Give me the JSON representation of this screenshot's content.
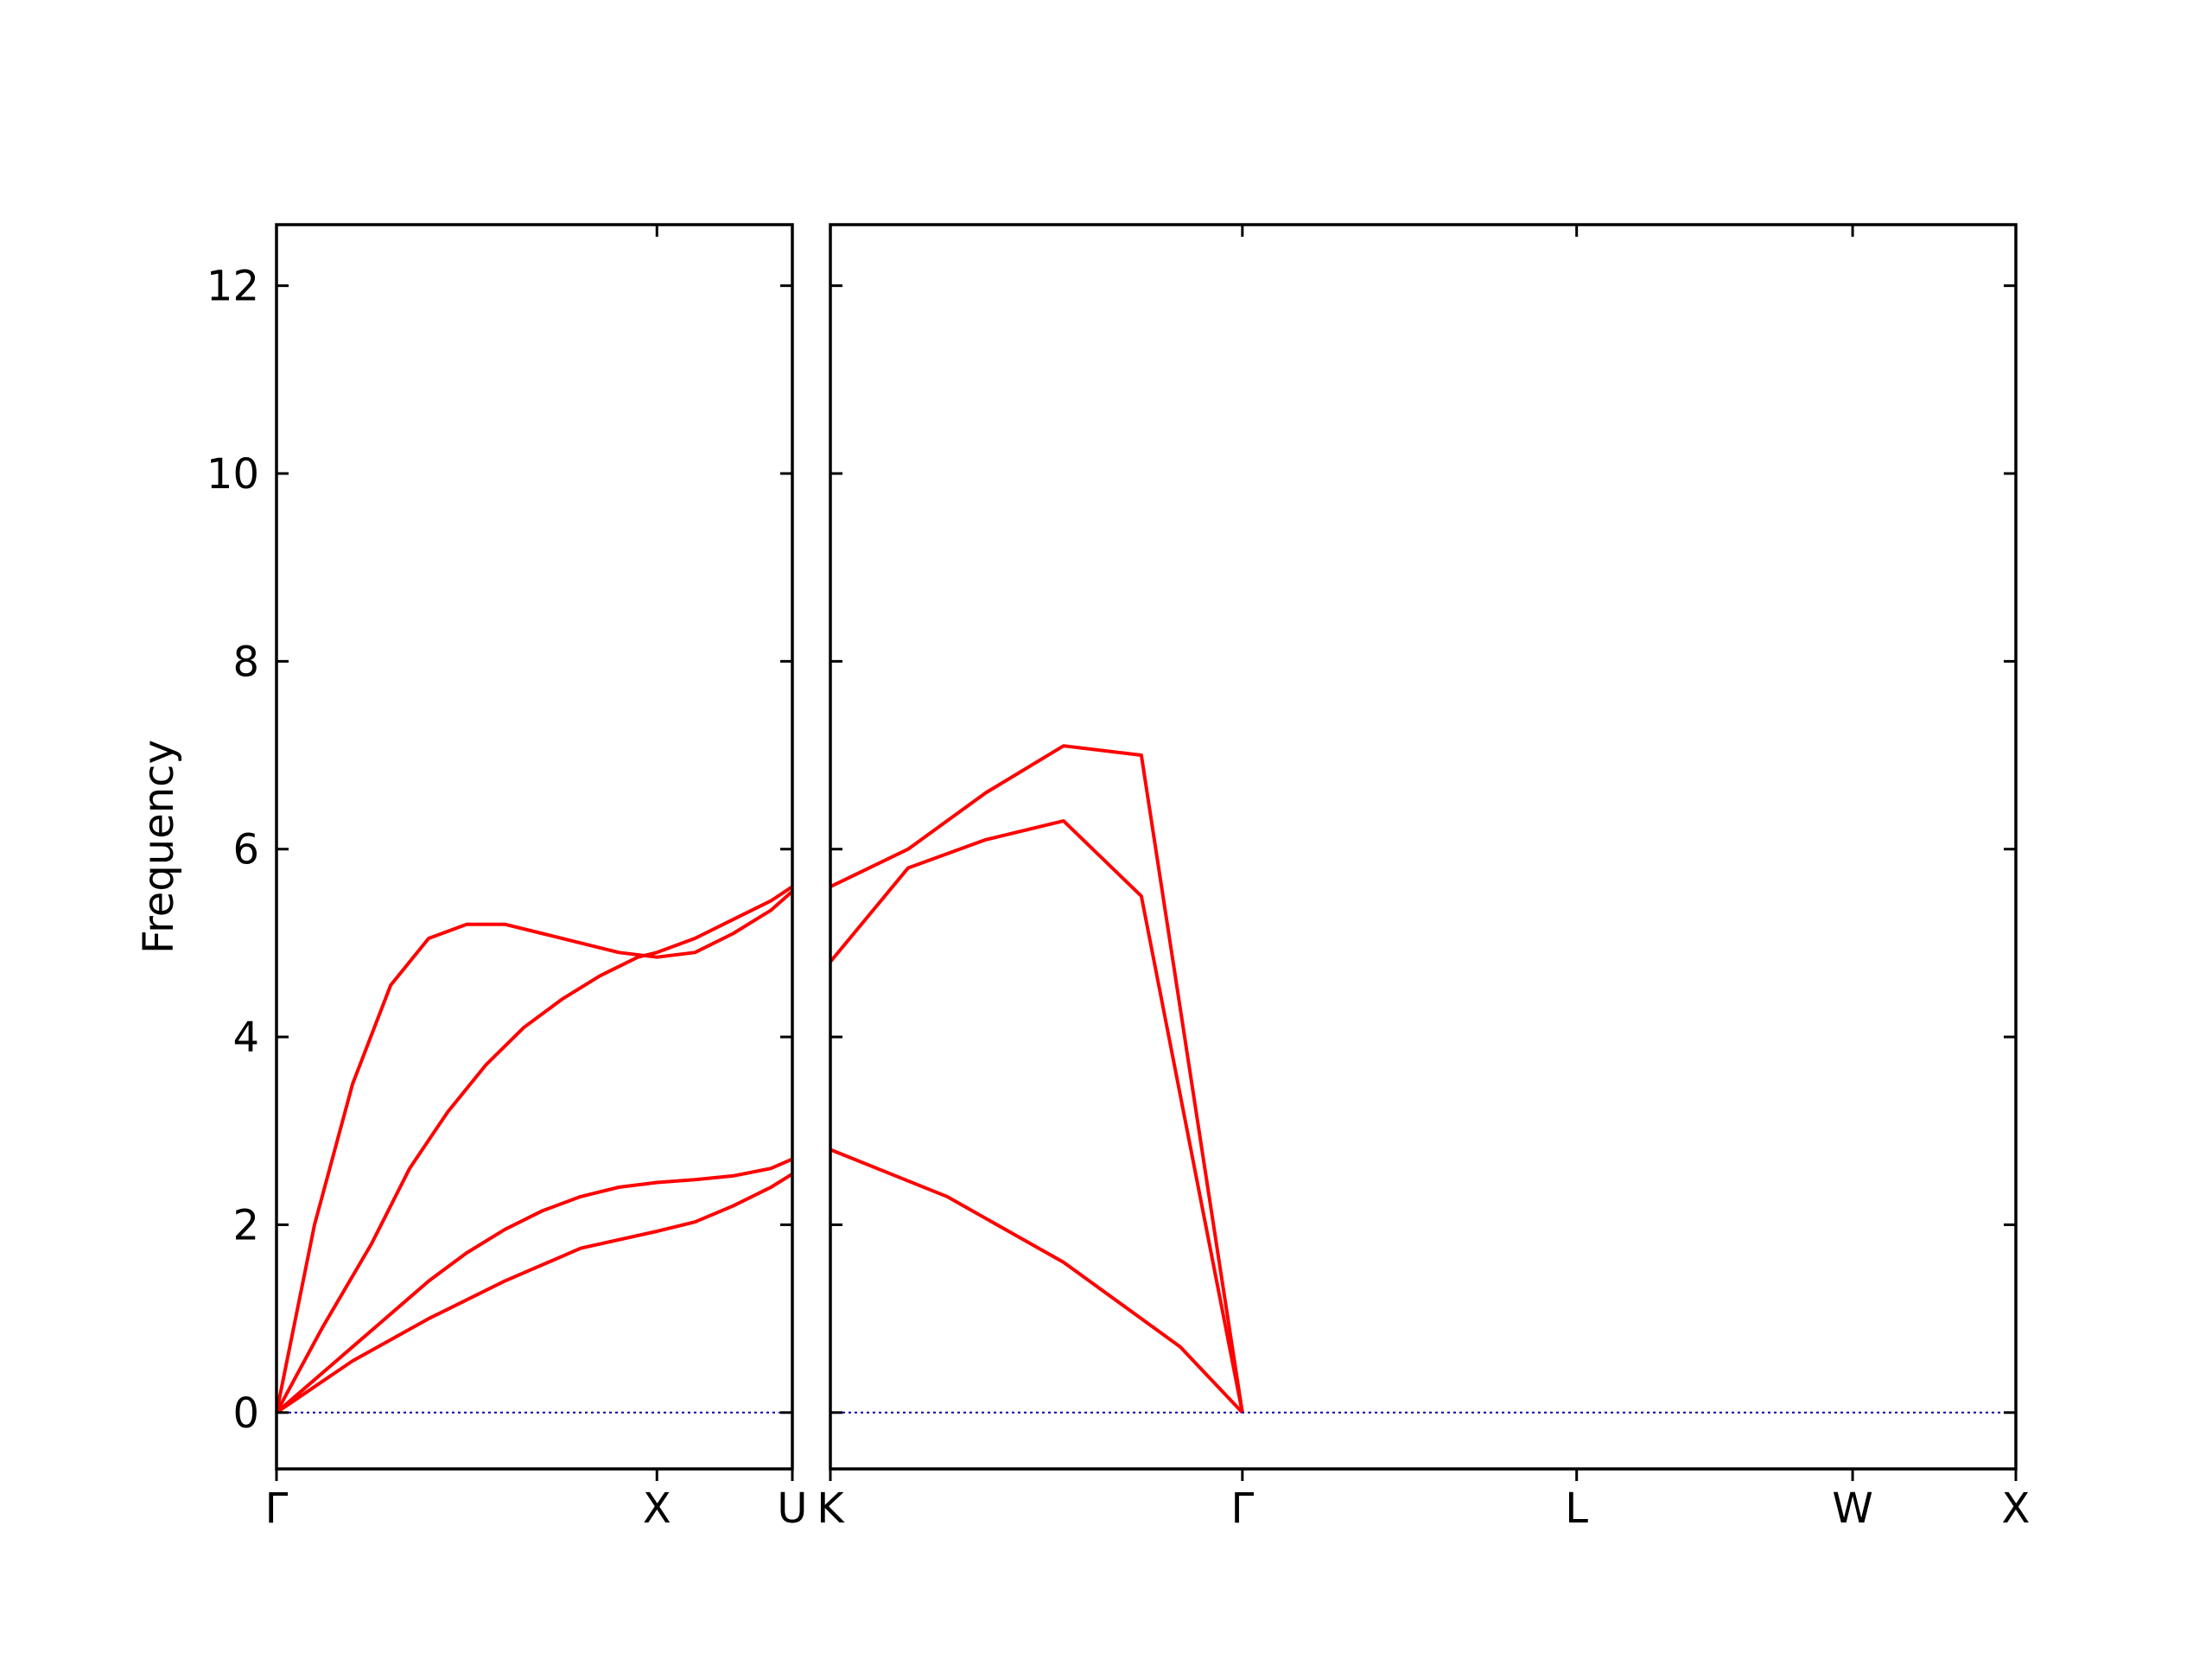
{
  "chart_data": {
    "type": "line",
    "ylabel": "Frequency",
    "ylim": [
      -0.6,
      12.65
    ],
    "yticks": [
      0,
      2,
      4,
      6,
      8,
      10,
      12
    ],
    "grid": false,
    "legend": "none",
    "band_color": "#ff0000",
    "zero_line_color": "#0000aa",
    "panels": [
      {
        "name": "panel-1",
        "xrange": [
          0,
          1.356
        ],
        "ticks": [
          {
            "x": 0,
            "label": "Γ"
          },
          {
            "x": 1.0,
            "label": "X"
          },
          {
            "x": 1.356,
            "label": "U"
          }
        ],
        "bands": [
          {
            "x": [
              0,
              0.12,
              0.25,
              0.35,
              0.45,
              0.55,
              0.65,
              0.75,
              0.85,
              0.95,
              1.0,
              1.1,
              1.2,
              1.3,
              1.356
            ],
            "y": [
              0,
              0.9,
              1.8,
              2.6,
              3.2,
              3.7,
              4.1,
              4.4,
              4.65,
              4.85,
              4.9,
              5.05,
              5.25,
              5.45,
              5.6
            ]
          },
          {
            "x": [
              0,
              0.1,
              0.2,
              0.3,
              0.4,
              0.5,
              0.6,
              0.7,
              0.8,
              0.9,
              1.0,
              1.1,
              1.2,
              1.3,
              1.356
            ],
            "y": [
              0,
              2.0,
              3.5,
              4.55,
              5.05,
              5.2,
              5.2,
              5.1,
              5.0,
              4.9,
              4.85,
              4.9,
              5.1,
              5.35,
              5.55
            ]
          },
          {
            "x": [
              0,
              0.2,
              0.4,
              0.6,
              0.8,
              1.0,
              1.1,
              1.2,
              1.3,
              1.356
            ],
            "y": [
              0,
              0.55,
              1.0,
              1.4,
              1.75,
              1.93,
              2.03,
              2.2,
              2.4,
              2.54
            ]
          },
          {
            "x": [
              0,
              0.1,
              0.2,
              0.3,
              0.4,
              0.5,
              0.6,
              0.7,
              0.8,
              0.9,
              1.0,
              1.1,
              1.2,
              1.3,
              1.356
            ],
            "y": [
              0,
              0.35,
              0.7,
              1.05,
              1.4,
              1.7,
              1.95,
              2.15,
              2.3,
              2.4,
              2.45,
              2.48,
              2.52,
              2.6,
              2.7
            ]
          }
        ]
      },
      {
        "name": "panel-2",
        "xrange": [
          0,
          3.05
        ],
        "ticks": [
          {
            "x": 0,
            "label": "K"
          },
          {
            "x": 1.06,
            "label": "Γ"
          },
          {
            "x": 1.92,
            "label": "L"
          },
          {
            "x": 2.63,
            "label": "W"
          },
          {
            "x": 3.05,
            "label": "X"
          }
        ],
        "bands": [
          {
            "x": [
              0,
              0.2,
              0.4,
              0.6,
              0.8,
              1.06
            ],
            "y": [
              5.6,
              6.0,
              6.6,
              7.1,
              7.0,
              0
            ]
          },
          {
            "x": [
              0,
              0.2,
              0.4,
              0.6,
              0.8,
              1.06
            ],
            "y": [
              4.8,
              5.8,
              6.1,
              6.3,
              5.5,
              0
            ]
          },
          {
            "x": [
              0,
              0.3,
              0.6,
              0.9,
              1.06
            ],
            "y": [
              2.8,
              2.3,
              1.6,
              0.7,
              0
            ]
          }
        ]
      }
    ]
  }
}
